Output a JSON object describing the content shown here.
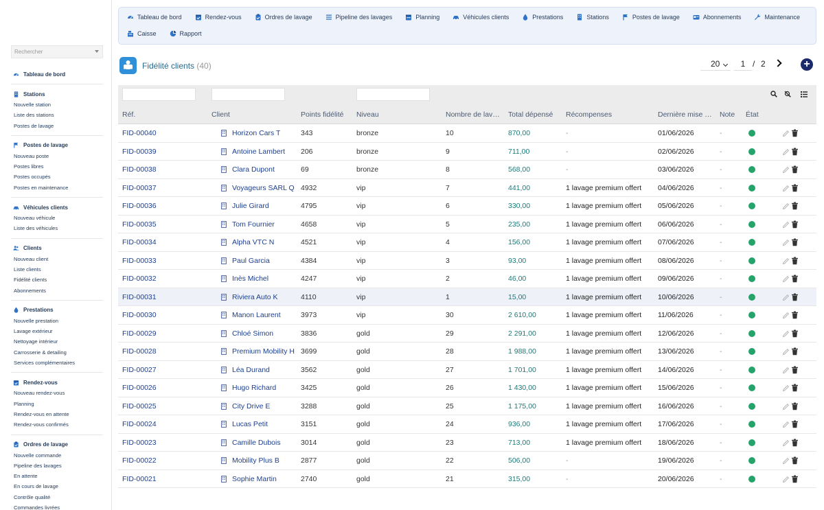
{
  "sidebar": {
    "search_placeholder": "Rechercher",
    "groups": [
      {
        "title": "Tableau de bord",
        "icon": "dashboard-icon",
        "items": []
      },
      {
        "title": "Stations",
        "icon": "building-icon",
        "items": [
          "Nouvelle station",
          "Liste des stations",
          "Postes de lavage"
        ]
      },
      {
        "title": "Postes de lavage",
        "icon": "flag-icon",
        "items": [
          "Nouveau poste",
          "Postes libres",
          "Postes occupés",
          "Postes en maintenance"
        ]
      },
      {
        "title": "Véhicules clients",
        "icon": "car-icon",
        "items": [
          "Nouveau véhicule",
          "Liste des véhicules"
        ]
      },
      {
        "title": "Clients",
        "icon": "users-icon",
        "items": [
          "Nouveau client",
          "Liste clients",
          "Fidélité clients",
          "Abonnements"
        ]
      },
      {
        "title": "Prestations",
        "icon": "drop-icon",
        "items": [
          "Nouvelle prestation",
          "Lavage extérieur",
          "Nettoyage intérieur",
          "Carrosserie & detailing",
          "Services complémentaires"
        ]
      },
      {
        "title": "Rendez-vous",
        "icon": "calendar-check-icon",
        "items": [
          "Nouveau rendez-vous",
          "Planning",
          "Rendez-vous en attente",
          "Rendez-vous confirmés"
        ]
      },
      {
        "title": "Ordres de lavage",
        "icon": "clipboard-icon",
        "items": [
          "Nouvelle commande",
          "Pipeline des lavages",
          "En attente",
          "En cours de lavage",
          "Contrôle qualité",
          "Commandes livrées"
        ]
      }
    ]
  },
  "topnav": {
    "row1": [
      {
        "label": "Tableau de bord",
        "icon": "dashboard-icon"
      },
      {
        "label": "Rendez-vous",
        "icon": "calendar-check-icon"
      },
      {
        "label": "Ordres de lavage",
        "icon": "clipboard-icon"
      },
      {
        "label": "Pipeline des lavages",
        "icon": "bars-icon"
      },
      {
        "label": "Planning",
        "icon": "calendar-icon"
      },
      {
        "label": "Véhicules clients",
        "icon": "car-icon"
      },
      {
        "label": "Prestations",
        "icon": "drop-icon"
      },
      {
        "label": "Stations",
        "icon": "building-icon"
      },
      {
        "label": "Postes de lavage",
        "icon": "flag-icon"
      },
      {
        "label": "Abonnements",
        "icon": "card-icon"
      },
      {
        "label": "Maintenance",
        "icon": "wrench-icon"
      }
    ],
    "row2": [
      {
        "label": "Caisse",
        "icon": "register-icon"
      },
      {
        "label": "Rapport",
        "icon": "chart-pie-icon"
      }
    ]
  },
  "header": {
    "title": "Fidélité clients",
    "count": "(40)",
    "page_size": "20",
    "page": "1",
    "slash": "/",
    "total_pages": "2",
    "add_symbol": "+"
  },
  "table": {
    "columns": [
      "Réf.",
      "Client",
      "Points fidélité",
      "Niveau",
      "Nombre de lav…",
      "Total dépensé",
      "Récompenses",
      "Dernière mise …",
      "Note",
      "État"
    ],
    "rows": [
      {
        "ref": "FID-00040",
        "client": "Horizon Cars T",
        "points": "343",
        "niveau": "bronze",
        "nb": "10",
        "total": "870,00",
        "rec": "-",
        "date": "01/06/2026",
        "note": "-"
      },
      {
        "ref": "FID-00039",
        "client": "Antoine Lambert",
        "points": "206",
        "niveau": "bronze",
        "nb": "9",
        "total": "711,00",
        "rec": "-",
        "date": "02/06/2026",
        "note": "-"
      },
      {
        "ref": "FID-00038",
        "client": "Clara Dupont",
        "points": "69",
        "niveau": "bronze",
        "nb": "8",
        "total": "568,00",
        "rec": "-",
        "date": "03/06/2026",
        "note": "-"
      },
      {
        "ref": "FID-00037",
        "client": "Voyageurs SARL Q",
        "points": "4932",
        "niveau": "vip",
        "nb": "7",
        "total": "441,00",
        "rec": "1 lavage premium offert",
        "date": "04/06/2026",
        "note": "-"
      },
      {
        "ref": "FID-00036",
        "client": "Julie Girard",
        "points": "4795",
        "niveau": "vip",
        "nb": "6",
        "total": "330,00",
        "rec": "1 lavage premium offert",
        "date": "05/06/2026",
        "note": "-"
      },
      {
        "ref": "FID-00035",
        "client": "Tom Fournier",
        "points": "4658",
        "niveau": "vip",
        "nb": "5",
        "total": "235,00",
        "rec": "1 lavage premium offert",
        "date": "06/06/2026",
        "note": "-"
      },
      {
        "ref": "FID-00034",
        "client": "Alpha VTC N",
        "points": "4521",
        "niveau": "vip",
        "nb": "4",
        "total": "156,00",
        "rec": "1 lavage premium offert",
        "date": "07/06/2026",
        "note": "-"
      },
      {
        "ref": "FID-00033",
        "client": "Paul Garcia",
        "points": "4384",
        "niveau": "vip",
        "nb": "3",
        "total": "93,00",
        "rec": "1 lavage premium offert",
        "date": "08/06/2026",
        "note": "-"
      },
      {
        "ref": "FID-00032",
        "client": "Inès Michel",
        "points": "4247",
        "niveau": "vip",
        "nb": "2",
        "total": "46,00",
        "rec": "1 lavage premium offert",
        "date": "09/06/2026",
        "note": "-"
      },
      {
        "ref": "FID-00031",
        "client": "Riviera Auto K",
        "points": "4110",
        "niveau": "vip",
        "nb": "1",
        "total": "15,00",
        "rec": "1 lavage premium offert",
        "date": "10/06/2026",
        "note": "-"
      },
      {
        "ref": "FID-00030",
        "client": "Manon Laurent",
        "points": "3973",
        "niveau": "vip",
        "nb": "30",
        "total": "2 610,00",
        "rec": "1 lavage premium offert",
        "date": "11/06/2026",
        "note": "-"
      },
      {
        "ref": "FID-00029",
        "client": "Chloé Simon",
        "points": "3836",
        "niveau": "gold",
        "nb": "29",
        "total": "2 291,00",
        "rec": "1 lavage premium offert",
        "date": "12/06/2026",
        "note": "-"
      },
      {
        "ref": "FID-00028",
        "client": "Premium Mobility H",
        "points": "3699",
        "niveau": "gold",
        "nb": "28",
        "total": "1 988,00",
        "rec": "1 lavage premium offert",
        "date": "13/06/2026",
        "note": "-"
      },
      {
        "ref": "FID-00027",
        "client": "Léa Durand",
        "points": "3562",
        "niveau": "gold",
        "nb": "27",
        "total": "1 701,00",
        "rec": "1 lavage premium offert",
        "date": "14/06/2026",
        "note": "-"
      },
      {
        "ref": "FID-00026",
        "client": "Hugo Richard",
        "points": "3425",
        "niveau": "gold",
        "nb": "26",
        "total": "1 430,00",
        "rec": "1 lavage premium offert",
        "date": "15/06/2026",
        "note": "-"
      },
      {
        "ref": "FID-00025",
        "client": "City Drive E",
        "points": "3288",
        "niveau": "gold",
        "nb": "25",
        "total": "1 175,00",
        "rec": "1 lavage premium offert",
        "date": "16/06/2026",
        "note": "-"
      },
      {
        "ref": "FID-00024",
        "client": "Lucas Petit",
        "points": "3151",
        "niveau": "gold",
        "nb": "24",
        "total": "936,00",
        "rec": "1 lavage premium offert",
        "date": "17/06/2026",
        "note": "-"
      },
      {
        "ref": "FID-00023",
        "client": "Camille Dubois",
        "points": "3014",
        "niveau": "gold",
        "nb": "23",
        "total": "713,00",
        "rec": "1 lavage premium offert",
        "date": "18/06/2026",
        "note": "-"
      },
      {
        "ref": "FID-00022",
        "client": "Mobility Plus B",
        "points": "2877",
        "niveau": "gold",
        "nb": "22",
        "total": "506,00",
        "rec": "-",
        "date": "19/06/2026",
        "note": "-"
      },
      {
        "ref": "FID-00021",
        "client": "Sophie Martin",
        "points": "2740",
        "niveau": "gold",
        "nb": "21",
        "total": "315,00",
        "rec": "-",
        "date": "20/06/2026",
        "note": "-"
      }
    ],
    "highlighted_row": 9
  },
  "colors": {
    "accent": "#2f8fd8",
    "status_ok": "#25a36b",
    "link": "#1d3f8f",
    "amount": "#1c7a78"
  }
}
